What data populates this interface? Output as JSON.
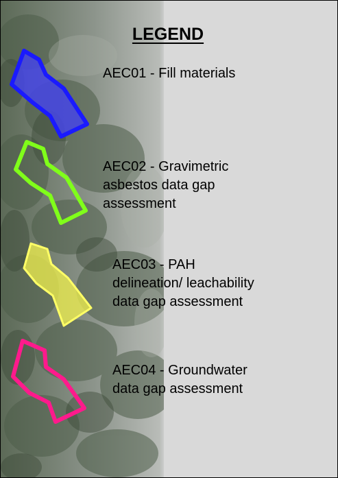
{
  "legend": {
    "title": "LEGEND",
    "items": [
      {
        "id": "AEC01",
        "lines": [
          "AEC01 - Fill materials"
        ],
        "stroke": "#1a1aff",
        "fill": "#4545e6",
        "fill_opacity": 0.85
      },
      {
        "id": "AEC02",
        "lines": [
          "AEC02 - Gravimetric",
          "asbestos data gap",
          "assessment"
        ],
        "stroke": "#80ff1a",
        "fill": "none",
        "fill_opacity": 0
      },
      {
        "id": "AEC03",
        "lines": [
          "AEC03 - PAH",
          "delineation/ leachability",
          "data gap assessment"
        ],
        "stroke": "#ffff66",
        "fill": "#f2f24d",
        "fill_opacity": 0.75
      },
      {
        "id": "AEC04",
        "lines": [
          "AEC04 - Groundwater",
          "data gap assessment"
        ],
        "stroke": "#ff1a8c",
        "fill": "none",
        "fill_opacity": 0
      }
    ]
  }
}
